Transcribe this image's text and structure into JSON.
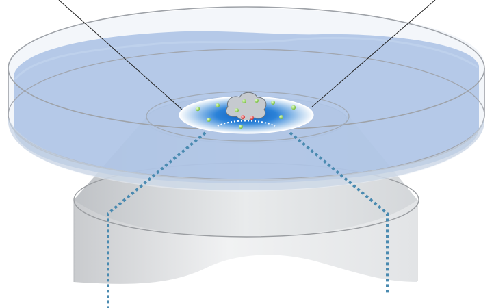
{
  "diagram": {
    "subject": "petri-dish-on-microscope-objective",
    "colors": {
      "medium": "#a9c4e8",
      "dish_rim": "#9aa0a8",
      "objective_body": "#e6e8ea",
      "focal_blue": "#1f6fc9",
      "light_path": "#4a8ab0",
      "particle_green": "#8ccf4a",
      "particle_red": "#e04040",
      "cell": "#c9cdd2"
    },
    "labels": []
  }
}
